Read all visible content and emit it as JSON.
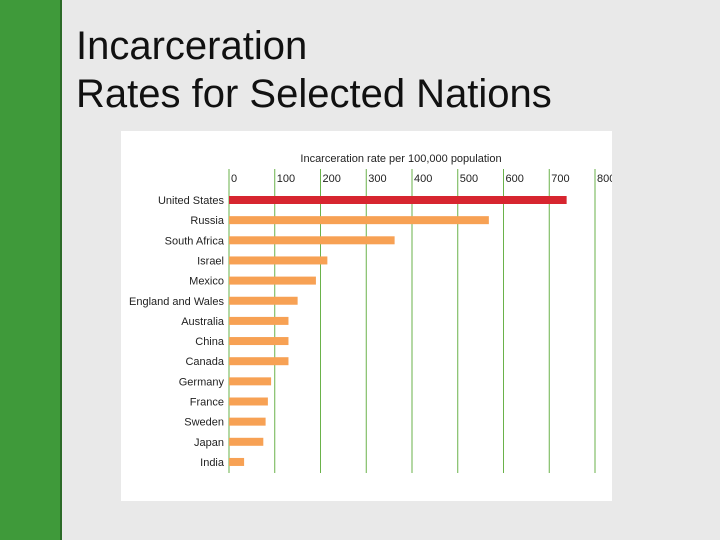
{
  "slide": {
    "title_line1": "Incarceration",
    "title_line2": "Rates for Selected Nations"
  },
  "colors": {
    "sidebar": "#3f9a3a",
    "highlight_bar": "#d7252f",
    "bar": "#f7a154",
    "gridline": "#6ab24a"
  },
  "chart_data": {
    "type": "bar",
    "orientation": "horizontal",
    "title": "Incarceration rate per 100,000 population",
    "xlim": [
      0,
      800
    ],
    "ticks": [
      0,
      100,
      200,
      300,
      400,
      500,
      600,
      700,
      800
    ],
    "grid": true,
    "categories": [
      "United States",
      "Russia",
      "South Africa",
      "Israel",
      "Mexico",
      "England and Wales",
      "Australia",
      "China",
      "Canada",
      "Germany",
      "France",
      "Sweden",
      "Japan",
      "India"
    ],
    "values": [
      738,
      568,
      362,
      215,
      190,
      150,
      130,
      130,
      130,
      92,
      85,
      80,
      75,
      33
    ],
    "highlight_index": 0
  }
}
